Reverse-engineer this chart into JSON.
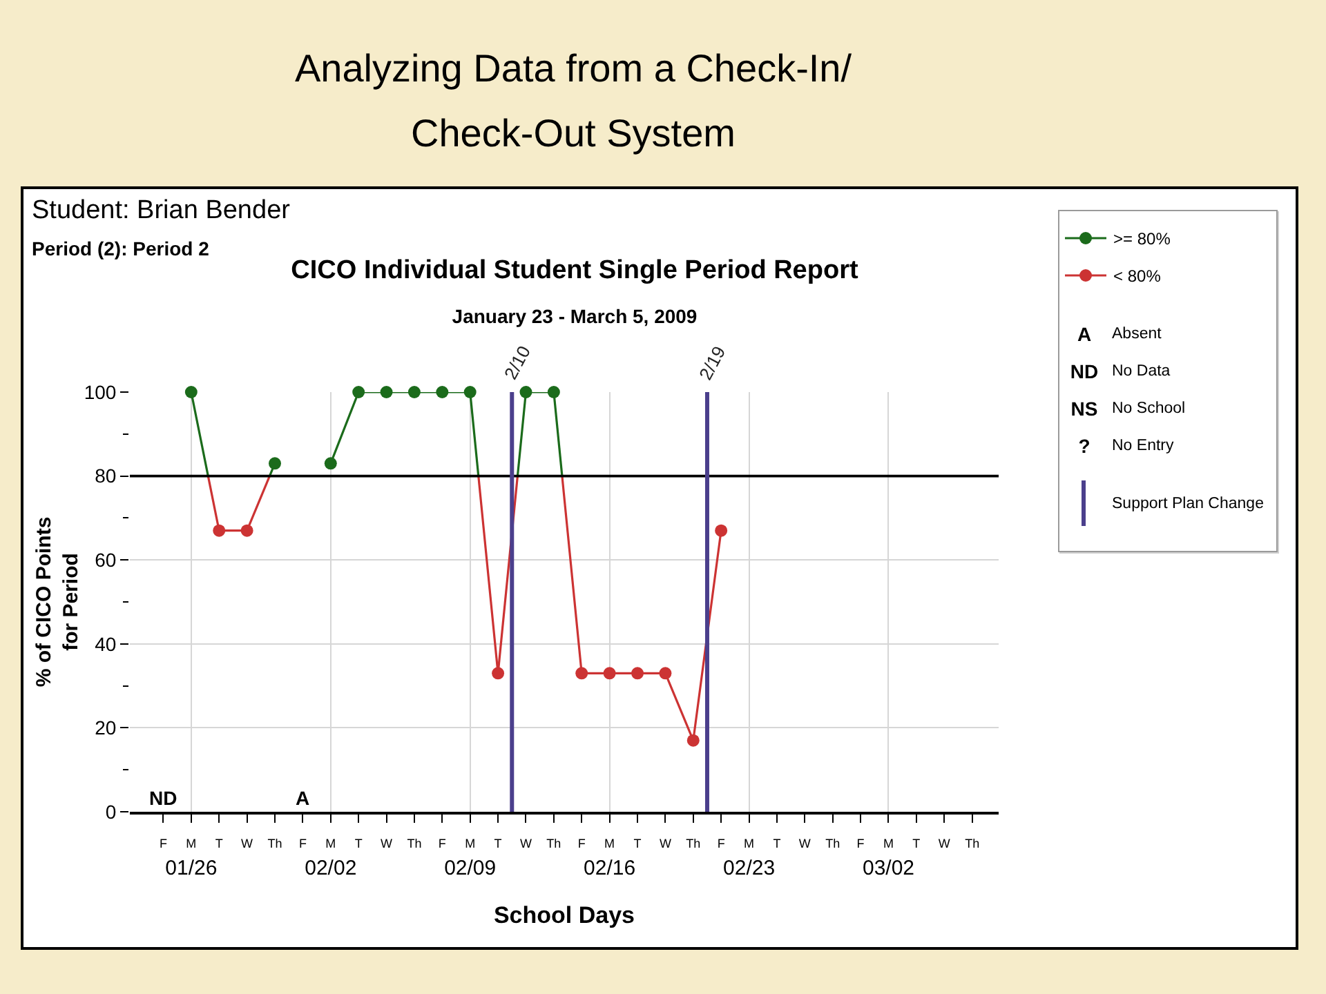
{
  "chart_data": {
    "type": "line",
    "title": "CICO Individual Student Single Period Report",
    "subtitle": "January 23 - March 5, 2009",
    "xlabel": "School Days",
    "ylabel": "% of CICO Points\nfor Period",
    "categories": [
      "F",
      "M\n01/26",
      "T",
      "W",
      "Th",
      "F",
      "M\n02/02",
      "T",
      "W",
      "Th",
      "F",
      "M\n02/09",
      "T",
      "W",
      "Th",
      "F",
      "M\n02/16",
      "T",
      "W",
      "Th",
      "F",
      "M\n02/23",
      "T",
      "W",
      "Th",
      "F",
      "M\n03/02",
      "T",
      "W",
      "Th"
    ],
    "ylim": [
      0,
      100
    ],
    "yticks": [
      0,
      {
        "value": 10,
        "label": null
      },
      20,
      {
        "value": 30,
        "label": null
      },
      40,
      {
        "value": 50,
        "label": null
      },
      60,
      {
        "value": 70,
        "label": null
      },
      80,
      {
        "value": 90,
        "label": null
      },
      100
    ],
    "grid": true,
    "legend": "top right",
    "marker": "circle",
    "series": [
      {
        "name": ">= 80%",
        "color": "#1b6b1b",
        "values": [
          null,
          100,
          null,
          null,
          83,
          null,
          83,
          100,
          100,
          100,
          100,
          100,
          null,
          100,
          100,
          null,
          null,
          null,
          null,
          null,
          null,
          null,
          null,
          null,
          null,
          null,
          null,
          null,
          null,
          null
        ]
      },
      {
        "name": "< 80%",
        "color": "#cc3333",
        "values": [
          null,
          null,
          67,
          67,
          null,
          null,
          null,
          null,
          null,
          null,
          null,
          null,
          33,
          null,
          null,
          33,
          33,
          33,
          33,
          17,
          67,
          null,
          null,
          null,
          null,
          null,
          null,
          null,
          null,
          null
        ]
      }
    ],
    "ref_lines": [
      {
        "axis": "y",
        "value": 80,
        "color": "#000000"
      }
    ],
    "annotations": [
      "Analyzing Data from a Check-In/\nCheck-Out System",
      "Student: Brian Bender",
      "Period (2): Period 2",
      "ND",
      "A",
      {
        "text": "2/10",
        "y": 100
      },
      "2/19",
      "A",
      "Absent",
      "ND",
      "No Data",
      "NS",
      "No School",
      "?",
      "No Entry",
      "Support Plan Change"
    ]
  }
}
